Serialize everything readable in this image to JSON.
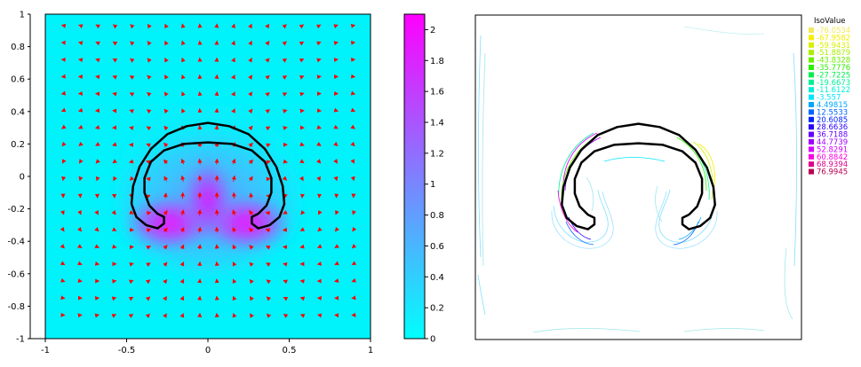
{
  "chart_data": [
    {
      "type": "heatmap",
      "subtype": "velocity-magnitude-with-vectors",
      "title": "",
      "xlabel": "",
      "ylabel": "",
      "xlim": [
        -1,
        1
      ],
      "ylim": [
        -1,
        1
      ],
      "x_ticks": [
        -1,
        -0.5,
        0,
        0.5,
        1
      ],
      "x_tick_labels": [
        "-1",
        "-0.5",
        "0",
        "0.5",
        "1"
      ],
      "y_ticks": [
        1,
        0.8,
        0.6,
        0.4,
        0.2,
        0,
        -0.2,
        -0.4,
        -0.6,
        -0.8,
        -1
      ],
      "y_tick_labels": [
        "1",
        "0.8",
        "0.6",
        "0.4",
        "0.2",
        "0",
        "-0.2",
        "-0.4",
        "-0.6",
        "-0.8",
        "-1"
      ],
      "colorbar": {
        "range": [
          0,
          2.1
        ],
        "ticks": [
          2,
          1.8,
          1.6,
          1.4,
          1.2,
          1,
          0.8,
          0.6,
          0.4,
          0.2,
          0
        ],
        "tick_labels": [
          "2",
          "1.8",
          "1.6",
          "1.4",
          "1.2",
          "1",
          "0.8",
          "0.6",
          "0.4",
          "0.2",
          "0"
        ],
        "colors": [
          "#00ffff",
          "#ff00ff"
        ]
      },
      "vector_color": "#ff0000",
      "interface_color": "#000000",
      "interface_outer": [
        [
          -0.47,
          -0.17
        ],
        [
          -0.46,
          -0.06
        ],
        [
          -0.42,
          0.06
        ],
        [
          -0.35,
          0.17
        ],
        [
          -0.25,
          0.26
        ],
        [
          -0.13,
          0.31
        ],
        [
          0,
          0.33
        ],
        [
          0.13,
          0.31
        ],
        [
          0.25,
          0.26
        ],
        [
          0.35,
          0.17
        ],
        [
          0.42,
          0.06
        ],
        [
          0.46,
          -0.06
        ],
        [
          0.47,
          -0.17
        ],
        [
          0.44,
          -0.25
        ],
        [
          0.38,
          -0.3
        ],
        [
          0.31,
          -0.32
        ],
        [
          0.27,
          -0.29
        ],
        [
          0.27,
          -0.25
        ],
        [
          0.31,
          -0.23
        ]
      ],
      "interface_inner": [
        [
          0.31,
          -0.23
        ],
        [
          0.36,
          -0.18
        ],
        [
          0.39,
          -0.1
        ],
        [
          0.39,
          -0.01
        ],
        [
          0.35,
          0.09
        ],
        [
          0.27,
          0.16
        ],
        [
          0.15,
          0.2
        ],
        [
          0,
          0.21
        ],
        [
          -0.15,
          0.2
        ],
        [
          -0.27,
          0.16
        ],
        [
          -0.35,
          0.09
        ],
        [
          -0.39,
          -0.01
        ],
        [
          -0.39,
          -0.1
        ],
        [
          -0.36,
          -0.18
        ],
        [
          -0.31,
          -0.23
        ],
        [
          -0.27,
          -0.25
        ],
        [
          -0.27,
          -0.29
        ],
        [
          -0.31,
          -0.32
        ],
        [
          -0.38,
          -0.3
        ],
        [
          -0.44,
          -0.25
        ],
        [
          -0.47,
          -0.17
        ]
      ]
    },
    {
      "type": "contour",
      "title": "",
      "xlim": [
        -1,
        1
      ],
      "ylim": [
        -1,
        1
      ],
      "legend": {
        "title": "IsoValue",
        "placement": "top-right",
        "entries": [
          {
            "label": "-76.0534",
            "color": "#f2e85a"
          },
          {
            "label": "-67.9582",
            "color": "#f5f000"
          },
          {
            "label": "-59.9431",
            "color": "#d8f000"
          },
          {
            "label": "-51.8879",
            "color": "#a8f000"
          },
          {
            "label": "-43.8328",
            "color": "#6cf000"
          },
          {
            "label": "-35.7776",
            "color": "#2cf000"
          },
          {
            "label": "-27.7225",
            "color": "#00f04c"
          },
          {
            "label": "-19.6673",
            "color": "#00f09a"
          },
          {
            "label": "-11.6122",
            "color": "#00f0d4"
          },
          {
            "label": "-3.557",
            "color": "#00e6ff"
          },
          {
            "label": "4.49815",
            "color": "#00a8ff"
          },
          {
            "label": "12.5533",
            "color": "#0066ff"
          },
          {
            "label": "20.6085",
            "color": "#0024ff"
          },
          {
            "label": "28.6636",
            "color": "#2a00ff"
          },
          {
            "label": "36.7188",
            "color": "#6600ff"
          },
          {
            "label": "44.7739",
            "color": "#a000ff"
          },
          {
            "label": "52.8291",
            "color": "#d800ff"
          },
          {
            "label": "60.8842",
            "color": "#ff00e0"
          },
          {
            "label": "68.9394",
            "color": "#e0008c"
          },
          {
            "label": "76.9945",
            "color": "#b80050"
          }
        ]
      }
    }
  ]
}
